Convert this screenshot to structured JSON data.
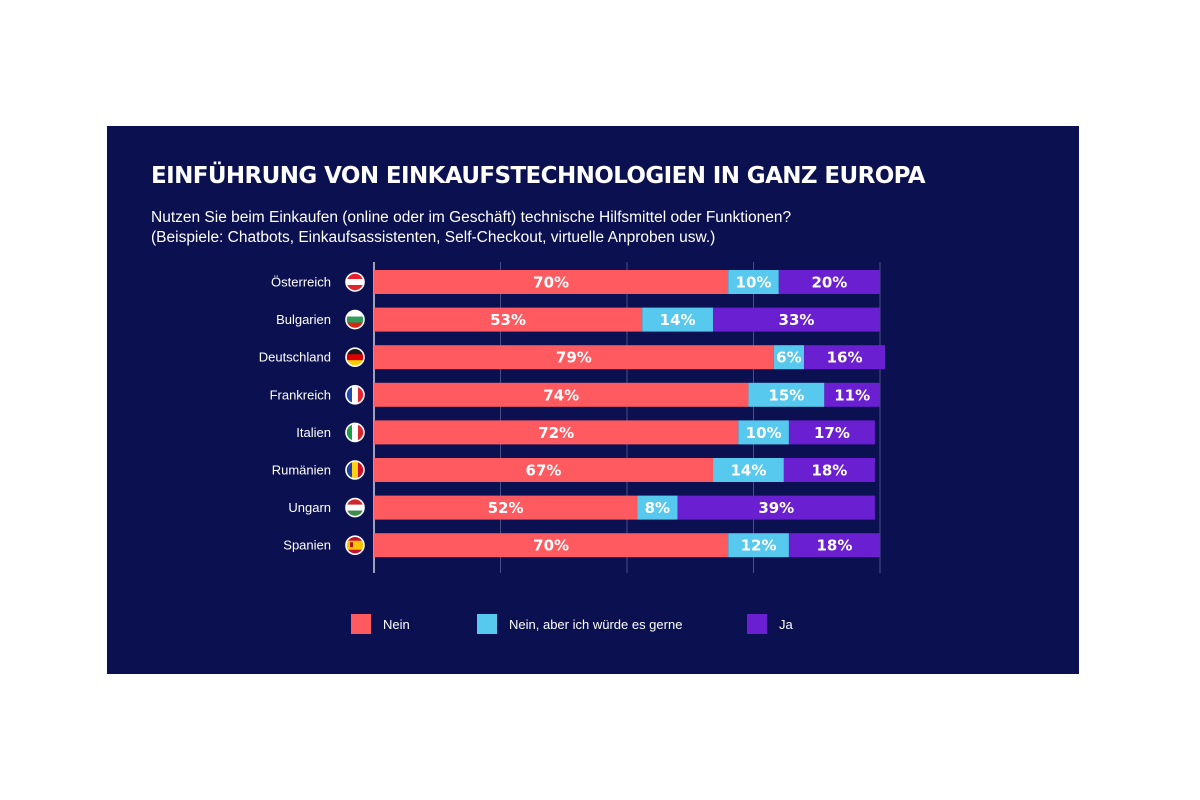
{
  "colors": {
    "background": "#0b1150",
    "nein": "#ff5a5f",
    "nein_aber": "#57c8ee",
    "ja": "#6a1fd0",
    "text": "#ffffff"
  },
  "chart_data": {
    "type": "bar",
    "orientation": "horizontal",
    "stacked": true,
    "title": "EINFÜHRUNG VON EINKAUFSTECHNOLOGIEN IN GANZ EUROPA",
    "subtitle_lines": [
      "Nutzen Sie beim Einkaufen (online oder im Geschäft) technische Hilfsmittel oder Funktionen?",
      "(Beispiele: Chatbots, Einkaufsassistenten, Self-Checkout, virtuelle Anproben usw.)"
    ],
    "unit": "%",
    "xlim": [
      0,
      100
    ],
    "grid": true,
    "legend_position": "bottom",
    "categories": [
      {
        "name": "Österreich",
        "flag": "austria-flag-icon"
      },
      {
        "name": "Bulgarien",
        "flag": "bulgaria-flag-icon"
      },
      {
        "name": "Deutschland",
        "flag": "germany-flag-icon"
      },
      {
        "name": "Frankreich",
        "flag": "france-flag-icon"
      },
      {
        "name": "Italien",
        "flag": "italy-flag-icon"
      },
      {
        "name": "Rumänien",
        "flag": "romania-flag-icon"
      },
      {
        "name": "Ungarn",
        "flag": "hungary-flag-icon"
      },
      {
        "name": "Spanien",
        "flag": "spain-flag-icon"
      }
    ],
    "series": [
      {
        "name": "Nein",
        "color": "#ff5a5f",
        "values": [
          70,
          53,
          79,
          74,
          72,
          67,
          52,
          70
        ]
      },
      {
        "name": "Nein, aber ich würde es gerne",
        "color": "#57c8ee",
        "values": [
          10,
          14,
          6,
          15,
          10,
          14,
          8,
          12
        ]
      },
      {
        "name": "Ja",
        "color": "#6a1fd0",
        "values": [
          20,
          33,
          16,
          11,
          17,
          18,
          39,
          18
        ]
      }
    ]
  }
}
